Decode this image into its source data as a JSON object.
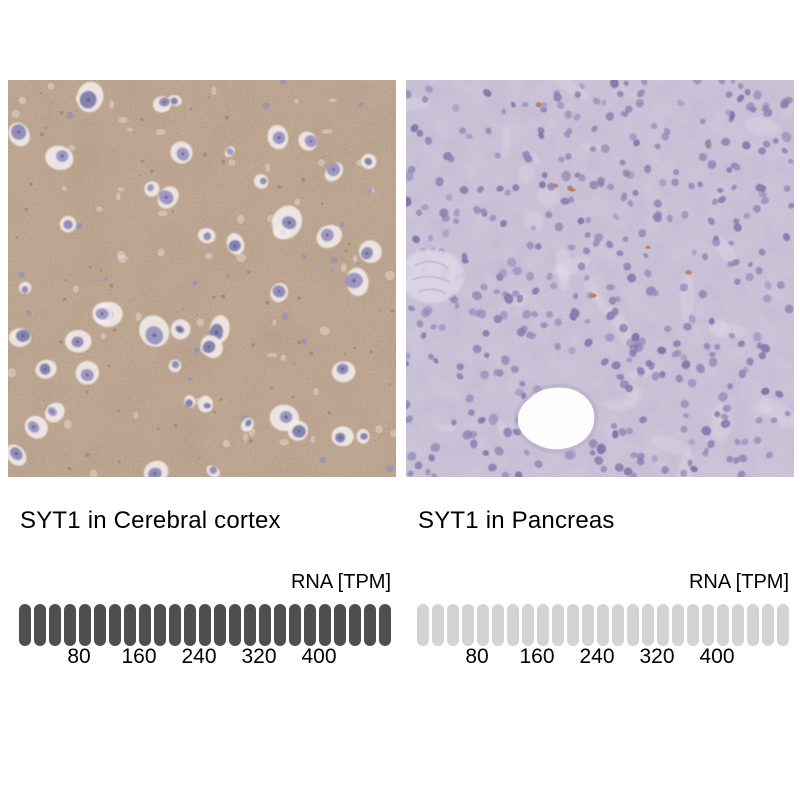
{
  "figure": {
    "background": "#ffffff"
  },
  "panels": [
    {
      "title": "SYT1 in Cerebral cortex",
      "description": "IHC microscopy of cerebral cortex: diffuse brown antibody staining with scattered neurons (pale halos, blue-purple nuclei)",
      "colors": {
        "tissue_base": "#c1a78f",
        "cell_halo": "#f2edec",
        "nucleus_a": "#8d8ab6",
        "nucleus_b": "#9a94c0",
        "nucleus_c": "#7f7dac",
        "nucleolus": "#5a577f",
        "glia_dot": "#9390bb",
        "vacuole": "#e9e1d9",
        "speckle": "#8a6a4f"
      }
    },
    {
      "title": "SYT1 in Pancreas",
      "description": "IHC microscopy of pancreas: negative (no brown staining), lavender hematoxylin counterstain, dense purple nuclei, white duct lumen lower centre",
      "colors": {
        "tissue_base": "#c8bfd7",
        "nucleus_a": "#8f82b3",
        "nucleus_b": "#7f71a7",
        "nucleus_c": "#9a8fbc",
        "nucleus_d": "#887bae",
        "wisp": "#e9e4ee",
        "lumen": "#fdfdfe",
        "lumen_rim": "#c8bfd2",
        "lumen_halo": "#ada0c0",
        "duct": "#dcd5e5",
        "duct_line": "#c3b9d1",
        "orange_speck": "#b87c4e"
      }
    }
  ],
  "chart_data": [
    {
      "type": "bar",
      "title": "SYT1 in Cerebral cortex",
      "xlabel": "RNA [TPM]",
      "ticks": [
        80,
        160,
        240,
        320,
        400
      ],
      "tpm_per_segment": 20,
      "segments_total": 25,
      "segments_filled": 25,
      "xlim": [
        0,
        500
      ],
      "filled_color": "#4e4e4e",
      "empty_color": "#d3d3d3"
    },
    {
      "type": "bar",
      "title": "SYT1 in Pancreas",
      "xlabel": "RNA [TPM]",
      "ticks": [
        80,
        160,
        240,
        320,
        400
      ],
      "tpm_per_segment": 20,
      "segments_total": 25,
      "segments_filled": 0,
      "xlim": [
        0,
        500
      ],
      "filled_color": "#4e4e4e",
      "empty_color": "#d3d3d3"
    }
  ]
}
